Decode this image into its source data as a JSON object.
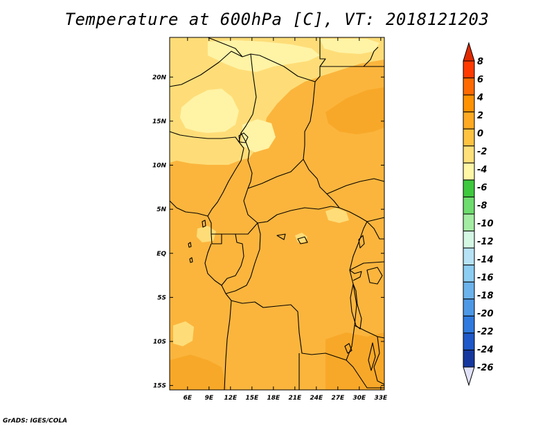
{
  "title": "Temperature at 600hPa [C], VT: 2018121203",
  "credit": "GrADS: IGES/COLA",
  "map": {
    "region": "Central Africa",
    "field": "Temperature at 600hPa",
    "units": "C",
    "valid_time": "2018121203",
    "lon_range": [
      3.5,
      33.5
    ],
    "lat_range": [
      -15.5,
      24.5
    ],
    "x_tick_labels": [
      "6E",
      "9E",
      "12E",
      "15E",
      "18E",
      "21E",
      "24E",
      "27E",
      "30E",
      "33E"
    ],
    "y_tick_labels": [
      "20N",
      "15N",
      "10N",
      "5N",
      "EQ",
      "5S",
      "10S",
      "15S"
    ]
  },
  "colorbar": {
    "labels": [
      "8",
      "6",
      "4",
      "2",
      "0",
      "-2",
      "-4",
      "-6",
      "-8",
      "-10",
      "-12",
      "-14",
      "-16",
      "-18",
      "-20",
      "-22",
      "-24",
      "-26"
    ],
    "colors_top_to_bottom": [
      "#ff3a00",
      "#ff6a00",
      "#ff9200",
      "#ffaa22",
      "#ffc342",
      "#ffe07a",
      "#fff6a6",
      "#3ec83e",
      "#6edc6e",
      "#a4eca4",
      "#d4f7e4",
      "#b7e2f6",
      "#8dcdf2",
      "#6cb3ec",
      "#4d98e6",
      "#2f7ade",
      "#1f58c8",
      "#16389e",
      "#0e1d6e"
    ],
    "top_arrow_color": "#e02a00",
    "bottom_arrow_color": "#e1e1fa"
  },
  "palette": {
    "t_ge_2": "#fbb53d",
    "t_0_2": "#fcc24c",
    "t_m2_0": "#fedd78",
    "t_m4_m2": "#fff3a5",
    "t_2_4": "#f8a828",
    "boundary": "#000000"
  }
}
